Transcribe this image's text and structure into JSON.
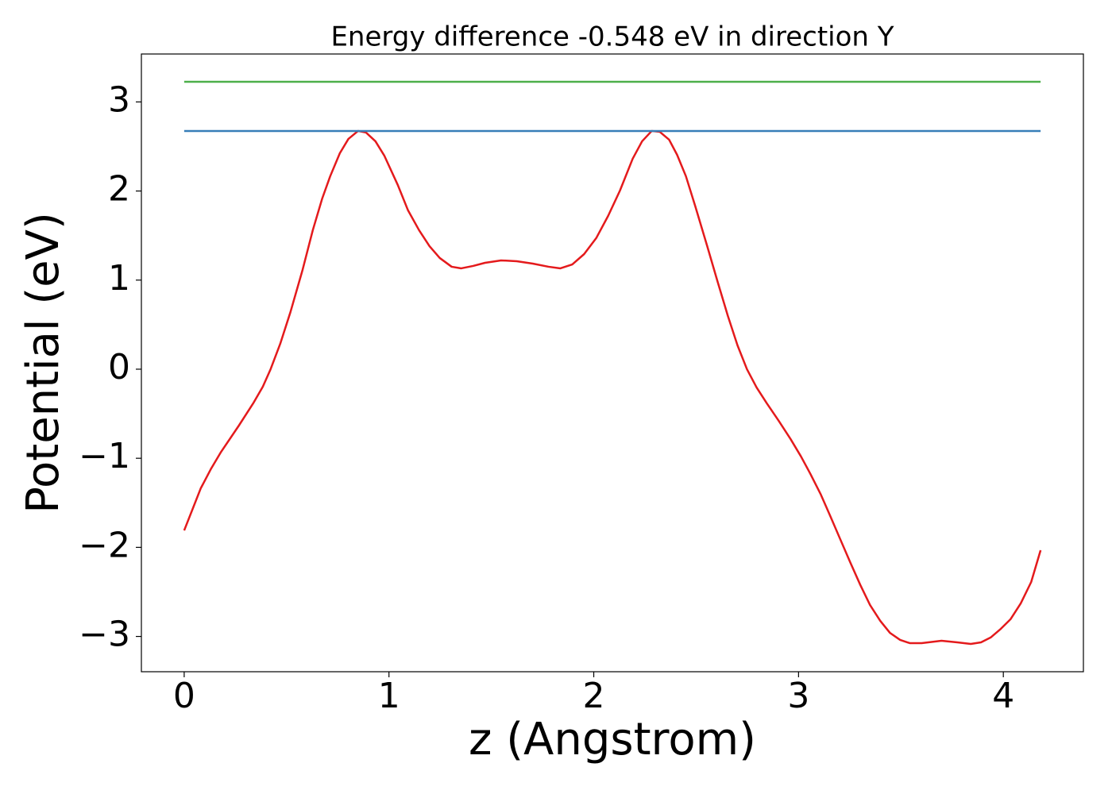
{
  "chart_data": {
    "type": "line",
    "title": "Energy difference -0.548 eV in direction Y",
    "xlabel": "z (Angstrom)",
    "ylabel": "Potential (eV)",
    "xlim": [
      -0.209,
      4.391
    ],
    "ylim": [
      -3.396,
      3.538
    ],
    "xticks": [
      0,
      1,
      2,
      3,
      4
    ],
    "yticks": [
      {
        "value": -3,
        "label": "−3"
      },
      {
        "value": -2,
        "label": "−2"
      },
      {
        "value": -1,
        "label": "−1"
      },
      0,
      1,
      2,
      3
    ],
    "grid": false,
    "series": [
      {
        "color": "#e41a1c",
        "x": [
          0,
          0.081,
          0.132,
          0.178,
          0.267,
          0.337,
          0.384,
          0.422,
          0.469,
          0.519,
          0.578,
          0.628,
          0.674,
          0.713,
          0.76,
          0.802,
          0.849,
          0.888,
          0.934,
          0.977,
          1.043,
          1.093,
          1.147,
          1.198,
          1.248,
          1.306,
          1.353,
          1.411,
          1.469,
          1.547,
          1.624,
          1.702,
          1.779,
          1.837,
          1.895,
          1.953,
          2.012,
          2.07,
          2.128,
          2.19,
          2.236,
          2.283,
          2.322,
          2.368,
          2.407,
          2.45,
          2.496,
          2.554,
          2.605,
          2.655,
          2.702,
          2.748,
          2.795,
          2.845,
          2.903,
          2.961,
          3.012,
          3.058,
          3.109,
          3.155,
          3.205,
          3.252,
          3.302,
          3.349,
          3.399,
          3.446,
          3.496,
          3.543,
          3.601,
          3.698,
          3.775,
          3.841,
          3.891,
          3.938,
          3.988,
          4.035,
          4.085,
          4.136,
          4.182
        ],
        "values": [
          -1.81,
          -1.337,
          -1.114,
          -0.936,
          -0.633,
          -0.383,
          -0.196,
          0.0,
          0.285,
          0.642,
          1.114,
          1.56,
          1.916,
          2.166,
          2.424,
          2.585,
          2.674,
          2.656,
          2.558,
          2.398,
          2.068,
          1.783,
          1.56,
          1.381,
          1.248,
          1.15,
          1.132,
          1.159,
          1.194,
          1.221,
          1.212,
          1.185,
          1.15,
          1.132,
          1.176,
          1.292,
          1.471,
          1.72,
          2.005,
          2.362,
          2.558,
          2.674,
          2.665,
          2.576,
          2.406,
          2.166,
          1.827,
          1.381,
          0.98,
          0.597,
          0.267,
          0.0,
          -0.205,
          -0.383,
          -0.579,
          -0.784,
          -0.98,
          -1.176,
          -1.408,
          -1.649,
          -1.916,
          -2.166,
          -2.424,
          -2.647,
          -2.825,
          -2.959,
          -3.039,
          -3.075,
          -3.075,
          -3.048,
          -3.066,
          -3.084,
          -3.066,
          -3.012,
          -2.914,
          -2.807,
          -2.629,
          -2.389,
          -2.032
        ]
      },
      {
        "color": "#377eb8",
        "x": [
          0,
          4.182
        ],
        "values": [
          2.674,
          2.674
        ]
      },
      {
        "color": "#4daf4a",
        "x": [
          0,
          4.182
        ],
        "values": [
          3.226,
          3.226
        ]
      }
    ]
  }
}
